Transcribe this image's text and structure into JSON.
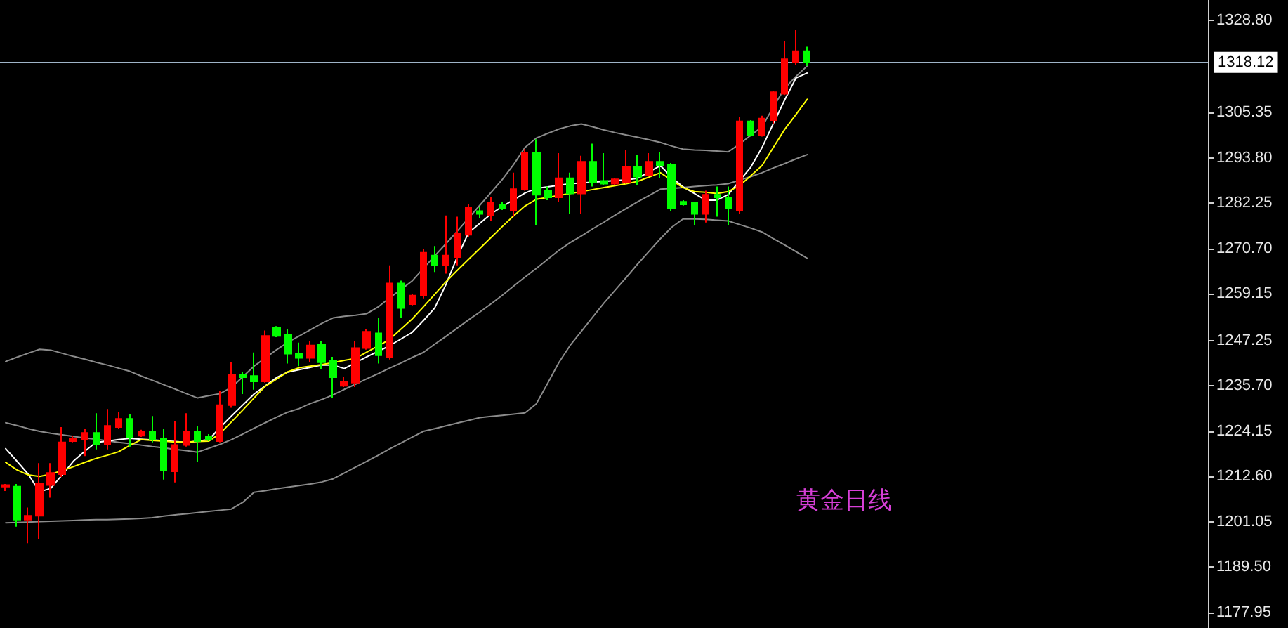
{
  "chart_data": {
    "type": "candlestick",
    "categories": [
      null,
      null,
      null,
      null,
      null,
      null,
      null,
      null,
      null,
      null,
      null,
      null,
      null,
      null,
      null,
      null,
      null,
      null,
      null,
      null,
      null,
      null,
      null,
      null,
      null,
      null,
      null,
      null,
      null,
      null,
      null,
      null,
      null,
      null,
      null,
      null,
      null,
      null,
      null,
      null,
      null,
      null,
      null,
      null,
      null,
      null,
      null,
      null,
      null,
      null,
      null,
      null,
      null,
      null,
      null,
      null,
      null,
      null,
      null,
      null,
      null,
      null,
      null,
      null,
      null,
      null,
      null,
      null,
      null,
      null,
      null,
      null,
      null,
      null,
      null,
      null,
      null,
      null,
      null,
      null,
      null,
      null,
      null,
      null,
      null,
      null,
      null,
      null,
      null,
      null,
      null,
      null,
      null,
      null,
      null,
      null,
      null,
      null,
      null,
      null,
      null,
      null,
      null,
      null,
      null,
      null,
      null
    ],
    "ohlc": [
      [
        1210.0,
        1210.7,
        1208.9,
        1210.4
      ],
      [
        1210.0,
        1210.7,
        1199.8,
        1201.6
      ],
      [
        1201.6,
        1204.7,
        1195.6,
        1202.6
      ],
      [
        1202.6,
        1216.0,
        1196.6,
        1210.7
      ],
      [
        1210.4,
        1216.0,
        1207.2,
        1213.5
      ],
      [
        1213.2,
        1225.2,
        1212.5,
        1221.3
      ],
      [
        1221.6,
        1223.0,
        1221.3,
        1222.3
      ],
      [
        1222.0,
        1224.8,
        1217.8,
        1223.7
      ],
      [
        1223.7,
        1228.7,
        1219.5,
        1220.9
      ],
      [
        1220.9,
        1229.8,
        1219.5,
        1225.5
      ],
      [
        1225.2,
        1229.1,
        1224.8,
        1227.3
      ],
      [
        1227.3,
        1228.4,
        1220.2,
        1222.7
      ],
      [
        1223.0,
        1224.5,
        1222.7,
        1224.1
      ],
      [
        1224.1,
        1228.0,
        1221.3,
        1222.0
      ],
      [
        1222.3,
        1224.8,
        1211.8,
        1214.2
      ],
      [
        1213.9,
        1226.6,
        1211.1,
        1220.6
      ],
      [
        1220.6,
        1228.7,
        1220.2,
        1224.1
      ],
      [
        1224.1,
        1225.5,
        1216.3,
        1221.6
      ],
      [
        1222.7,
        1223.4,
        1221.6,
        1222.0
      ],
      [
        1221.6,
        1234.3,
        1221.3,
        1230.8
      ],
      [
        1230.8,
        1241.7,
        1230.1,
        1238.6
      ],
      [
        1238.6,
        1239.3,
        1233.6,
        1237.9
      ],
      [
        1238.2,
        1244.2,
        1234.7,
        1236.8
      ],
      [
        1236.8,
        1249.8,
        1236.5,
        1248.4
      ],
      [
        1250.6,
        1250.9,
        1248.1,
        1248.4
      ],
      [
        1248.8,
        1250.2,
        1241.4,
        1243.9
      ],
      [
        1243.9,
        1246.7,
        1240.7,
        1242.8
      ],
      [
        1242.8,
        1247.0,
        1241.7,
        1246.0
      ],
      [
        1246.3,
        1247.0,
        1240.0,
        1241.7
      ],
      [
        1242.1,
        1243.1,
        1232.6,
        1237.9
      ],
      [
        1235.7,
        1237.9,
        1235.4,
        1236.8
      ],
      [
        1236.5,
        1247.0,
        1235.4,
        1245.3
      ],
      [
        1245.3,
        1250.2,
        1244.9,
        1249.5
      ],
      [
        1249.1,
        1253.0,
        1241.4,
        1243.5
      ],
      [
        1243.1,
        1266.4,
        1242.4,
        1261.8
      ],
      [
        1261.8,
        1262.5,
        1253.0,
        1255.5
      ],
      [
        1256.5,
        1259.0,
        1256.2,
        1258.7
      ],
      [
        1258.7,
        1270.6,
        1258.0,
        1269.6
      ],
      [
        1268.9,
        1271.3,
        1264.7,
        1266.4
      ],
      [
        1266.4,
        1279.1,
        1264.3,
        1268.9
      ],
      [
        1268.5,
        1278.8,
        1266.4,
        1274.5
      ],
      [
        1274.2,
        1281.9,
        1273.5,
        1281.2
      ],
      [
        1280.2,
        1281.2,
        1278.4,
        1279.5
      ],
      [
        1279.1,
        1283.7,
        1277.7,
        1282.3
      ],
      [
        1281.9,
        1282.6,
        1280.5,
        1280.9
      ],
      [
        1280.5,
        1290.0,
        1278.8,
        1285.8
      ],
      [
        1285.8,
        1296.0,
        1285.4,
        1295.0
      ],
      [
        1295.0,
        1298.5,
        1276.6,
        1284.4
      ],
      [
        1285.4,
        1286.5,
        1283.0,
        1283.7
      ],
      [
        1283.7,
        1295.0,
        1282.6,
        1288.6
      ],
      [
        1288.6,
        1290.0,
        1279.5,
        1284.7
      ],
      [
        1284.7,
        1294.3,
        1279.5,
        1292.8
      ],
      [
        1292.8,
        1297.4,
        1286.5,
        1287.6
      ],
      [
        1287.9,
        1295.0,
        1286.9,
        1287.2
      ],
      [
        1287.2,
        1288.6,
        1286.9,
        1288.3
      ],
      [
        1287.6,
        1295.7,
        1287.2,
        1291.4
      ],
      [
        1291.4,
        1294.6,
        1286.9,
        1289.0
      ],
      [
        1289.3,
        1295.0,
        1289.0,
        1292.8
      ],
      [
        1292.8,
        1295.3,
        1288.6,
        1291.8
      ],
      [
        1292.1,
        1292.5,
        1280.2,
        1280.9
      ],
      [
        1282.6,
        1283.0,
        1281.6,
        1281.9
      ],
      [
        1282.3,
        1282.6,
        1276.6,
        1279.5
      ],
      [
        1279.5,
        1285.4,
        1277.3,
        1284.4
      ],
      [
        1284.4,
        1286.5,
        1278.8,
        1283.7
      ],
      [
        1283.7,
        1286.5,
        1276.6,
        1280.9
      ],
      [
        1280.5,
        1304.1,
        1279.5,
        1303.1
      ],
      [
        1303.1,
        1303.4,
        1299.2,
        1299.6
      ],
      [
        1299.6,
        1304.5,
        1299.2,
        1303.8
      ],
      [
        1303.4,
        1310.8,
        1302.4,
        1310.5
      ],
      [
        1310.1,
        1323.5,
        1309.8,
        1318.9
      ],
      [
        1318.2,
        1326.3,
        1317.5,
        1321.0
      ],
      [
        1321.0,
        1322.1,
        1317.2,
        1318.1
      ],
      null,
      null,
      null,
      null,
      null,
      null,
      null,
      null,
      null,
      null,
      null,
      null,
      null,
      null,
      null,
      null,
      null,
      null,
      null,
      null,
      null,
      null,
      null,
      null,
      null,
      null,
      null,
      null,
      null,
      null,
      null,
      null,
      null,
      null,
      null
    ],
    "colors": [
      "#ff0000",
      "#00ff00",
      "#ff0000",
      "#ff0000",
      "#ff0000",
      "#ff0000",
      "#ff0000",
      "#ff0000",
      "#00ff00",
      "#ff0000",
      "#ff0000",
      "#00ff00",
      "#ff0000",
      "#00ff00",
      "#00ff00",
      "#ff0000",
      "#ff0000",
      "#00ff00",
      "#00ff00",
      "#ff0000",
      "#ff0000",
      "#00ff00",
      "#00ff00",
      "#ff0000",
      "#00ff00",
      "#00ff00",
      "#00ff00",
      "#ff0000",
      "#00ff00",
      "#00ff00",
      "#ff0000",
      "#ff0000",
      "#ff0000",
      "#00ff00",
      "#ff0000",
      "#00ff00",
      "#ff0000",
      "#ff0000",
      "#00ff00",
      "#ff0000",
      "#ff0000",
      "#ff0000",
      "#00ff00",
      "#ff0000",
      "#00ff00",
      "#ff0000",
      "#ff0000",
      "#00ff00",
      "#00ff00",
      "#ff0000",
      "#00ff00",
      "#ff0000",
      "#00ff00",
      "#00ff00",
      "#ff0000",
      "#ff0000",
      "#00ff00",
      "#ff0000",
      "#00ff00",
      "#00ff00",
      "#00ff00",
      "#00ff00",
      "#ff0000",
      "#00ff00",
      "#00ff00",
      "#ff0000",
      "#00ff00",
      "#ff0000",
      "#ff0000",
      "#ff0000",
      "#ff0000",
      "#00ff00",
      null,
      null,
      null,
      null,
      null,
      null,
      null,
      null,
      null,
      null,
      null,
      null,
      null,
      null,
      null,
      null,
      null,
      null,
      null,
      null,
      null,
      null,
      null,
      null,
      null,
      null,
      null,
      null,
      null,
      null,
      null,
      null,
      null,
      null,
      null
    ],
    "series": [
      {
        "type": "line",
        "color": "#8c8c8c",
        "values": [
          1241.9,
          1243.0,
          1244.0,
          1245.0,
          1244.8,
          1244.0,
          1243.2,
          1242.5,
          1241.7,
          1241.0,
          1240.2,
          1239.4,
          1238.2,
          1237.1,
          1236.0,
          1234.9,
          1233.7,
          1232.6,
          1233.2,
          1233.7,
          1235.3,
          1238.0,
          1240.7,
          1242.8,
          1244.9,
          1246.8,
          1248.4,
          1250.0,
          1251.6,
          1253.0,
          1253.4,
          1253.7,
          1254.1,
          1255.8,
          1258.1,
          1260.2,
          1262.4,
          1265.6,
          1268.8,
          1271.9,
          1275.1,
          1278.4,
          1281.7,
          1285.0,
          1288.3,
          1292.1,
          1296.4,
          1298.8,
          1300.0,
          1301.1,
          1301.9,
          1302.4,
          1301.7,
          1300.9,
          1300.2,
          1299.6,
          1299.0,
          1298.4,
          1297.7,
          1296.8,
          1296.0,
          1295.8,
          1295.7,
          1295.5,
          1295.3,
          1297.3,
          1299.5,
          1301.7,
          1306.7,
          1311.5,
          1314.5,
          1317.2,
          null,
          null,
          null,
          null,
          null,
          null,
          null,
          null,
          null,
          null,
          null,
          null,
          null,
          null,
          null,
          null,
          null,
          null,
          null,
          null,
          null,
          null,
          null,
          null,
          null,
          null,
          null,
          null,
          null,
          null,
          null,
          null,
          null,
          null,
          null
        ]
      },
      {
        "type": "line",
        "color": "#8c8c8c",
        "values": [
          1226.3,
          1225.6,
          1224.8,
          1224.1,
          1223.6,
          1223.2,
          1222.8,
          1222.4,
          1222.1,
          1221.7,
          1221.3,
          1221.0,
          1220.6,
          1220.2,
          1219.9,
          1219.5,
          1219.2,
          1218.8,
          1219.8,
          1220.8,
          1222.0,
          1223.4,
          1224.9,
          1226.3,
          1227.7,
          1229.0,
          1229.9,
          1231.2,
          1232.2,
          1233.4,
          1234.8,
          1236.1,
          1237.5,
          1238.8,
          1240.2,
          1241.5,
          1242.9,
          1244.2,
          1246.3,
          1248.3,
          1250.4,
          1252.5,
          1254.5,
          1256.6,
          1258.8,
          1261.1,
          1263.4,
          1265.6,
          1267.9,
          1270.2,
          1272.2,
          1273.9,
          1275.7,
          1277.4,
          1279.2,
          1280.9,
          1282.6,
          1284.2,
          1285.8,
          1286.0,
          1286.2,
          1286.5,
          1286.7,
          1286.9,
          1287.2,
          1288.1,
          1289.0,
          1290.0,
          1291.2,
          1292.3,
          1293.5,
          1294.6,
          null,
          null,
          null,
          null,
          null,
          null,
          null,
          null,
          null,
          null,
          null,
          null,
          null,
          null,
          null,
          null,
          null,
          null,
          null,
          null,
          null,
          null,
          null,
          null,
          null,
          null,
          null,
          null,
          null,
          null,
          null,
          null,
          null,
          null,
          null
        ]
      },
      {
        "type": "line",
        "color": "#8c8c8c",
        "values": [
          1200.8,
          1200.9,
          1201.0,
          1201.1,
          1201.2,
          1201.3,
          1201.4,
          1201.5,
          1201.6,
          1201.6,
          1201.7,
          1201.8,
          1201.9,
          1202.1,
          1202.5,
          1202.8,
          1203.1,
          1203.4,
          1203.7,
          1204.0,
          1204.3,
          1206.0,
          1208.6,
          1209.0,
          1209.5,
          1209.9,
          1210.3,
          1210.7,
          1211.2,
          1212.0,
          1213.5,
          1215.0,
          1216.5,
          1218.0,
          1219.6,
          1221.1,
          1222.6,
          1224.1,
          1224.8,
          1225.5,
          1226.2,
          1226.9,
          1227.6,
          1227.9,
          1228.2,
          1228.5,
          1228.8,
          1231.1,
          1236.3,
          1241.6,
          1246.0,
          1249.6,
          1253.2,
          1256.8,
          1260.1,
          1263.4,
          1266.8,
          1270.0,
          1273.2,
          1276.1,
          1278.2,
          1278.2,
          1278.1,
          1277.9,
          1277.7,
          1276.8,
          1275.9,
          1274.9,
          1273.2,
          1271.6,
          1269.9,
          1268.2,
          null,
          null,
          null,
          null,
          null,
          null,
          null,
          null,
          null,
          null,
          null,
          null,
          null,
          null,
          null,
          null,
          null,
          null,
          null,
          null,
          null,
          null,
          null,
          null,
          null,
          null,
          null,
          null,
          null,
          null,
          null,
          null,
          null,
          null,
          null
        ]
      },
      {
        "type": "line",
        "color": "#ffffff",
        "values": [
          1219.7,
          1216.5,
          1213.2,
          1208.7,
          1209.6,
          1213.0,
          1216.5,
          1219.0,
          1221.3,
          1221.6,
          1222.0,
          1222.3,
          1222.1,
          1221.9,
          null,
          1221.5,
          1221.3,
          1221.6,
          1222.0,
          1225.1,
          1228.0,
          1230.8,
          1233.6,
          1235.7,
          1237.8,
          1239.2,
          1239.8,
          1240.4,
          1241.0,
          1241.0,
          1240.1,
          1241.6,
          1243.1,
          1244.5,
          1245.9,
          1247.6,
          1249.3,
          1252.3,
          1255.5,
          1261.5,
          1268.5,
          1274.7,
          1277.1,
          1279.5,
          1281.4,
          1283.1,
          1284.8,
          1286.0,
          1286.4,
          1286.8,
          1287.2,
          1287.4,
          1287.6,
          1287.8,
          1288.0,
          1288.2,
          1288.6,
          1290.2,
          1291.8,
          1288.8,
          1286.4,
          1284.7,
          1283.0,
          1283.0,
          1284.4,
          1287.9,
          1291.4,
          1296.4,
          1302.5,
          1308.5,
          1314.1,
          1315.4,
          null,
          null,
          null,
          null,
          null,
          null,
          null,
          null,
          null,
          null,
          null,
          null,
          null,
          null,
          null,
          null,
          null,
          null,
          null,
          null,
          null,
          null,
          null,
          null,
          null,
          null,
          null,
          null,
          null,
          null,
          null,
          null,
          null,
          null,
          null
        ]
      },
      {
        "type": "line",
        "color": "#ffff00",
        "values": [
          1216.2,
          1214.3,
          1213.0,
          1212.6,
          1213.2,
          1214.1,
          1215.1,
          1216.2,
          1217.2,
          1218.0,
          1218.9,
          1220.5,
          1222.0,
          1221.8,
          1221.6,
          1221.4,
          1221.4,
          1221.5,
          1221.6,
          1223.6,
          1226.5,
          1229.5,
          1232.6,
          1235.6,
          1237.4,
          1239.3,
          1240.3,
          1240.7,
          1241.1,
          1241.6,
          1242.2,
          1242.7,
          1244.3,
          1245.9,
          1247.5,
          1250.1,
          1252.7,
          1255.8,
          1259.0,
          1262.2,
          1265.1,
          1267.9,
          1270.7,
          1273.5,
          1276.3,
          1279.0,
          1281.5,
          1283.2,
          1283.7,
          1284.2,
          1284.7,
          1285.2,
          1285.7,
          1286.2,
          1286.7,
          1287.2,
          1287.8,
          1288.9,
          1290.0,
          1288.1,
          1286.2,
          1285.2,
          1285.0,
          1284.7,
          1285.2,
          1286.7,
          1289.2,
          1291.8,
          1296.4,
          1301.0,
          1304.8,
          1308.7,
          null,
          null,
          null,
          null,
          null,
          null,
          null,
          null,
          null,
          null,
          null,
          null,
          null,
          null,
          null,
          null,
          null,
          null,
          null,
          null,
          null,
          null,
          null,
          null,
          null,
          null,
          null,
          null,
          null,
          null,
          null,
          null,
          null,
          null,
          null
        ]
      }
    ],
    "ylim": [
      1174,
      1334
    ],
    "yticks": [
      {
        "value": 1177.95,
        "label": "1177.95"
      },
      {
        "value": 1189.5,
        "label": "1189.50"
      },
      {
        "value": 1201.05,
        "label": "1201.05"
      },
      {
        "value": 1212.6,
        "label": "1212.60"
      },
      {
        "value": 1224.15,
        "label": "1224.15"
      },
      {
        "value": 1235.7,
        "label": "1235.70"
      },
      {
        "value": 1247.25,
        "label": "1247.25"
      },
      {
        "value": 1259.15,
        "label": "1259.15"
      },
      {
        "value": 1270.7,
        "label": "1270.70"
      },
      {
        "value": 1282.25,
        "label": "1282.25"
      },
      {
        "value": 1293.8,
        "label": "1293.80"
      },
      {
        "value": 1305.35,
        "label": "1305.35"
      },
      {
        "value": 1328.8,
        "label": "1328.80"
      }
    ],
    "tick_labels": "y",
    "ref_lines": [
      {
        "axis": "y",
        "value": 1318.12,
        "label": "1318.12",
        "color": "#9fb4c8"
      }
    ],
    "annotations": [
      "黄金日线"
    ]
  }
}
